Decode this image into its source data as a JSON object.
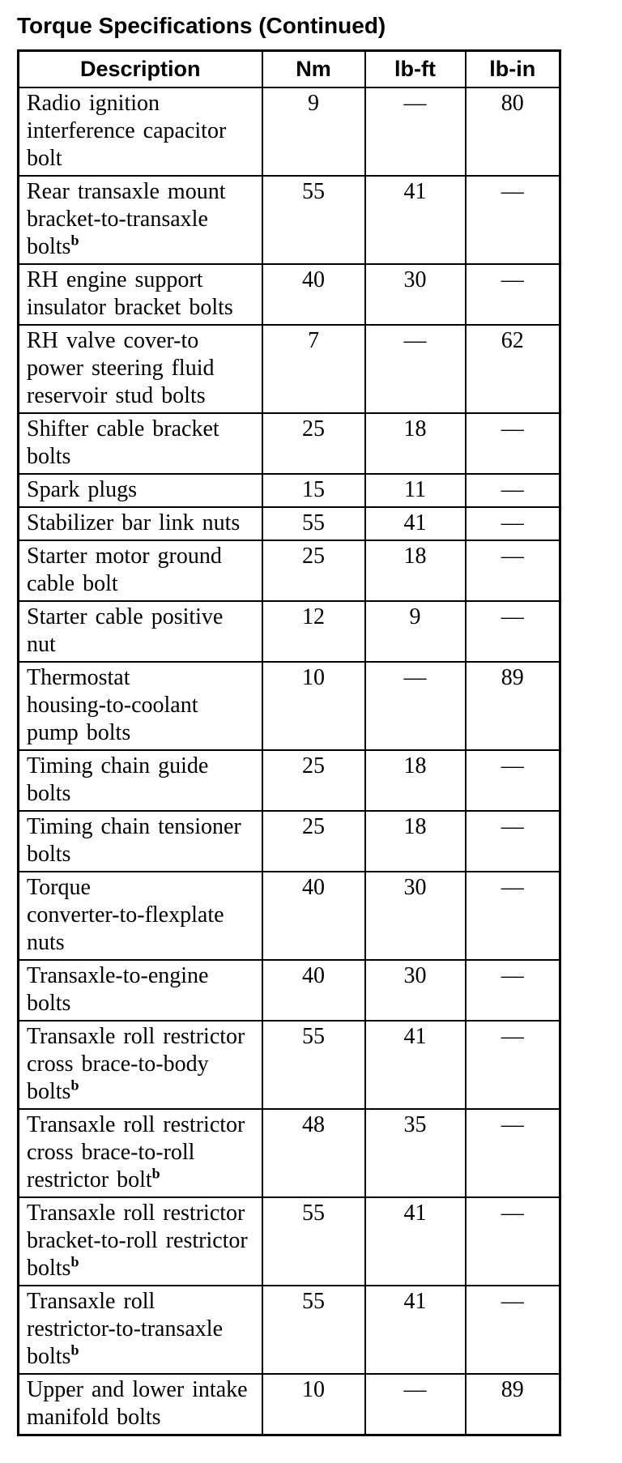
{
  "page_title": "Torque Specifications (Continued)",
  "colors": {
    "text": "#000000",
    "background": "#ffffff",
    "border": "#000000"
  },
  "table": {
    "columns": [
      "Description",
      "Nm",
      "lb-ft",
      "lb-in"
    ],
    "empty_value": "—",
    "rows": [
      {
        "description": "Radio ignition interference capacitor bolt",
        "lines": [
          "Radio ignition",
          "interference capacitor",
          "bolt"
        ],
        "sup": "",
        "nm": "9",
        "lb_ft": "—",
        "lb_in": "80"
      },
      {
        "description": "Rear transaxle mount bracket-to-transaxle bolts",
        "lines": [
          "Rear transaxle mount",
          "bracket-to-transaxle",
          "bolts"
        ],
        "sup": "b",
        "nm": "55",
        "lb_ft": "41",
        "lb_in": "—"
      },
      {
        "description": "RH engine support insulator bracket bolts",
        "lines": [
          "RH engine support",
          "insulator bracket bolts"
        ],
        "sup": "",
        "nm": "40",
        "lb_ft": "30",
        "lb_in": "—"
      },
      {
        "description": "RH valve cover-to power steering fluid reservoir stud bolts",
        "lines": [
          "RH valve cover-to",
          "power steering fluid",
          "reservoir stud bolts"
        ],
        "sup": "",
        "nm": "7",
        "lb_ft": "—",
        "lb_in": "62"
      },
      {
        "description": "Shifter cable bracket bolts",
        "lines": [
          "Shifter cable bracket",
          "bolts"
        ],
        "sup": "",
        "nm": "25",
        "lb_ft": "18",
        "lb_in": "—"
      },
      {
        "description": "Spark plugs",
        "lines": [
          "Spark plugs"
        ],
        "sup": "",
        "nm": "15",
        "lb_ft": "11",
        "lb_in": "—"
      },
      {
        "description": "Stabilizer bar link nuts",
        "lines": [
          "Stabilizer bar link nuts"
        ],
        "sup": "",
        "nm": "55",
        "lb_ft": "41",
        "lb_in": "—"
      },
      {
        "description": "Starter motor ground cable bolt",
        "lines": [
          "Starter motor ground",
          "cable bolt"
        ],
        "sup": "",
        "nm": "25",
        "lb_ft": "18",
        "lb_in": "—"
      },
      {
        "description": "Starter cable positive nut",
        "lines": [
          "Starter cable positive",
          "nut"
        ],
        "sup": "",
        "nm": "12",
        "lb_ft": "9",
        "lb_in": "—"
      },
      {
        "description": "Thermostat housing-to-coolant pump bolts",
        "lines": [
          "Thermostat",
          "housing-to-coolant",
          "pump bolts"
        ],
        "sup": "",
        "nm": "10",
        "lb_ft": "—",
        "lb_in": "89"
      },
      {
        "description": "Timing chain guide bolts",
        "lines": [
          "Timing chain guide",
          "bolts"
        ],
        "sup": "",
        "nm": "25",
        "lb_ft": "18",
        "lb_in": "—"
      },
      {
        "description": "Timing chain tensioner bolts",
        "lines": [
          "Timing chain tensioner",
          "bolts"
        ],
        "sup": "",
        "nm": "25",
        "lb_ft": "18",
        "lb_in": "—"
      },
      {
        "description": "Torque converter-to-flexplate nuts",
        "lines": [
          "Torque",
          "converter-to-flexplate",
          "nuts"
        ],
        "sup": "",
        "nm": "40",
        "lb_ft": "30",
        "lb_in": "—"
      },
      {
        "description": "Transaxle-to-engine bolts",
        "lines": [
          "Transaxle-to-engine",
          "bolts"
        ],
        "sup": "",
        "nm": "40",
        "lb_ft": "30",
        "lb_in": "—"
      },
      {
        "description": "Transaxle roll restrictor cross brace-to-body bolts",
        "lines": [
          "Transaxle roll restrictor",
          "cross brace-to-body",
          "bolts"
        ],
        "sup": "b",
        "nm": "55",
        "lb_ft": "41",
        "lb_in": "—"
      },
      {
        "description": "Transaxle roll restrictor cross brace-to-roll restrictor bolt",
        "lines": [
          "Transaxle roll restrictor",
          "cross brace-to-roll",
          "restrictor bolt"
        ],
        "sup": "b",
        "nm": "48",
        "lb_ft": "35",
        "lb_in": "—"
      },
      {
        "description": "Transaxle roll restrictor bracket-to-roll restrictor bolts",
        "lines": [
          "Transaxle roll restrictor",
          "bracket-to-roll restrictor",
          "bolts"
        ],
        "sup": "b",
        "nm": "55",
        "lb_ft": "41",
        "lb_in": "—"
      },
      {
        "description": "Transaxle roll restrictor-to-transaxle bolts",
        "lines": [
          "Transaxle roll",
          "restrictor-to-transaxle",
          "bolts"
        ],
        "sup": "b",
        "nm": "55",
        "lb_ft": "41",
        "lb_in": "—"
      },
      {
        "description": "Upper and lower intake manifold bolts",
        "lines": [
          "Upper and lower intake",
          "manifold bolts"
        ],
        "sup": "",
        "nm": "10",
        "lb_ft": "—",
        "lb_in": "89"
      }
    ]
  }
}
